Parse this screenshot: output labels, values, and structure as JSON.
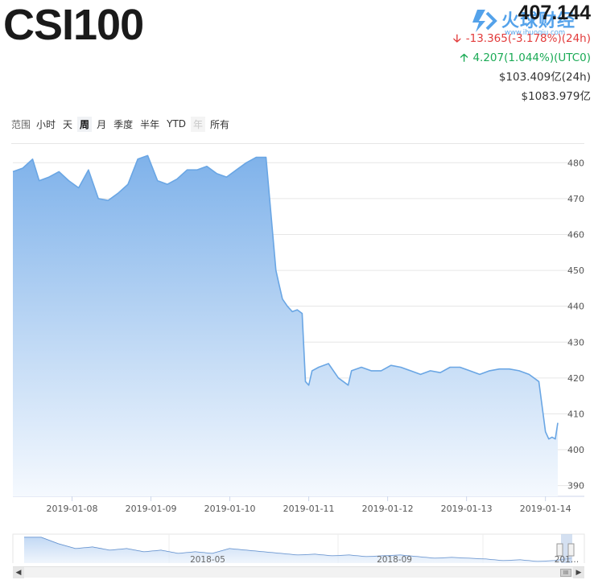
{
  "header": {
    "symbol": "CSI100",
    "price": "407.144",
    "change_24h": "-13.365(-3.178%)(24h)",
    "change_utc0": "4.207(1.044%)(UTC0)",
    "volume_24h": "$103.409亿(24h)",
    "market_cap": "$1083.979亿"
  },
  "watermark": {
    "text": "火球财经",
    "url": "www.ihuoqiu.com"
  },
  "range": {
    "label": "范围",
    "options": [
      {
        "label": "小时",
        "state": "normal"
      },
      {
        "label": "天",
        "state": "normal"
      },
      {
        "label": "周",
        "state": "active"
      },
      {
        "label": "月",
        "state": "normal"
      },
      {
        "label": "季度",
        "state": "normal"
      },
      {
        "label": "半年",
        "state": "normal"
      },
      {
        "label": "YTD",
        "state": "normal"
      },
      {
        "label": "年",
        "state": "disabled"
      },
      {
        "label": "所有",
        "state": "normal"
      }
    ]
  },
  "colors": {
    "line": "#6aa6e4",
    "fill_top": "#7fb2ea",
    "fill_bottom": "#f5f9fe",
    "grid": "#e6e6e6",
    "down": "#e23b3b",
    "up": "#1aaa55"
  },
  "chart_data": {
    "type": "area",
    "title": "",
    "xlabel": "",
    "ylabel": "",
    "x_ticks": [
      "2019-01-08",
      "2019-01-09",
      "2019-01-10",
      "2019-01-11",
      "2019-01-12",
      "2019-01-13",
      "2019-01-14"
    ],
    "x_range": [
      "2019-01-07T06:00",
      "2019-01-14T03:45"
    ],
    "ylim": [
      387,
      485
    ],
    "y_ticks": [
      390,
      400,
      410,
      420,
      430,
      440,
      450,
      460,
      470,
      480
    ],
    "y_axis_position": "right",
    "grid": true,
    "series": [
      {
        "x": [
          "2019-01-07T06:00",
          "2019-01-07T09:00",
          "2019-01-07T12:00",
          "2019-01-07T14:00",
          "2019-01-07T17:00",
          "2019-01-07T20:00",
          "2019-01-07T23:00",
          "2019-01-08T02:00",
          "2019-01-08T05:00",
          "2019-01-08T08:00",
          "2019-01-08T11:00",
          "2019-01-08T14:00",
          "2019-01-08T17:00",
          "2019-01-08T20:00",
          "2019-01-08T23:00",
          "2019-01-09T02:00",
          "2019-01-09T05:00",
          "2019-01-09T08:00",
          "2019-01-09T11:00",
          "2019-01-09T14:00",
          "2019-01-09T17:00",
          "2019-01-09T20:00",
          "2019-01-09T23:00",
          "2019-01-10T02:00",
          "2019-01-10T05:00",
          "2019-01-10T08:00",
          "2019-01-10T11:00",
          "2019-01-10T14:00",
          "2019-01-10T15:00",
          "2019-01-10T16:00",
          "2019-01-10T17:30",
          "2019-01-10T19:00",
          "2019-01-10T20:30",
          "2019-01-10T22:00",
          "2019-01-10T23:00",
          "2019-01-11T00:00",
          "2019-01-11T01:00",
          "2019-01-11T03:00",
          "2019-01-11T06:00",
          "2019-01-11T09:00",
          "2019-01-11T12:00",
          "2019-01-11T13:00",
          "2019-01-11T16:00",
          "2019-01-11T19:00",
          "2019-01-11T22:00",
          "2019-01-12T01:00",
          "2019-01-12T04:00",
          "2019-01-12T07:00",
          "2019-01-12T10:00",
          "2019-01-12T13:00",
          "2019-01-12T16:00",
          "2019-01-12T19:00",
          "2019-01-12T22:00",
          "2019-01-13T01:00",
          "2019-01-13T04:00",
          "2019-01-13T07:00",
          "2019-01-13T10:00",
          "2019-01-13T13:00",
          "2019-01-13T16:00",
          "2019-01-13T19:00",
          "2019-01-13T22:00",
          "2019-01-13T23:00",
          "2019-01-14T00:00",
          "2019-01-14T01:00",
          "2019-01-14T02:00",
          "2019-01-14T03:00",
          "2019-01-14T03:45"
        ],
        "y": [
          477.5,
          478.5,
          481,
          475,
          476,
          477.5,
          475,
          473,
          478,
          470,
          469.5,
          471.5,
          474,
          481,
          482,
          475,
          474,
          475.5,
          478,
          478,
          479,
          477,
          476,
          478,
          480,
          481.5,
          481.5,
          450,
          446,
          442,
          440,
          438.5,
          439,
          438,
          419,
          418,
          422,
          423,
          424,
          420,
          418,
          422,
          423,
          422,
          422,
          423.5,
          423,
          422,
          421,
          422,
          421.5,
          423,
          423,
          422,
          421,
          422,
          422.5,
          422.5,
          422,
          421,
          419,
          412,
          405,
          403,
          403.5,
          403,
          407.5
        ]
      }
    ]
  },
  "navigator": {
    "labels": [
      "2018-05",
      "2018-09",
      "201…"
    ],
    "handle_label": "III"
  }
}
